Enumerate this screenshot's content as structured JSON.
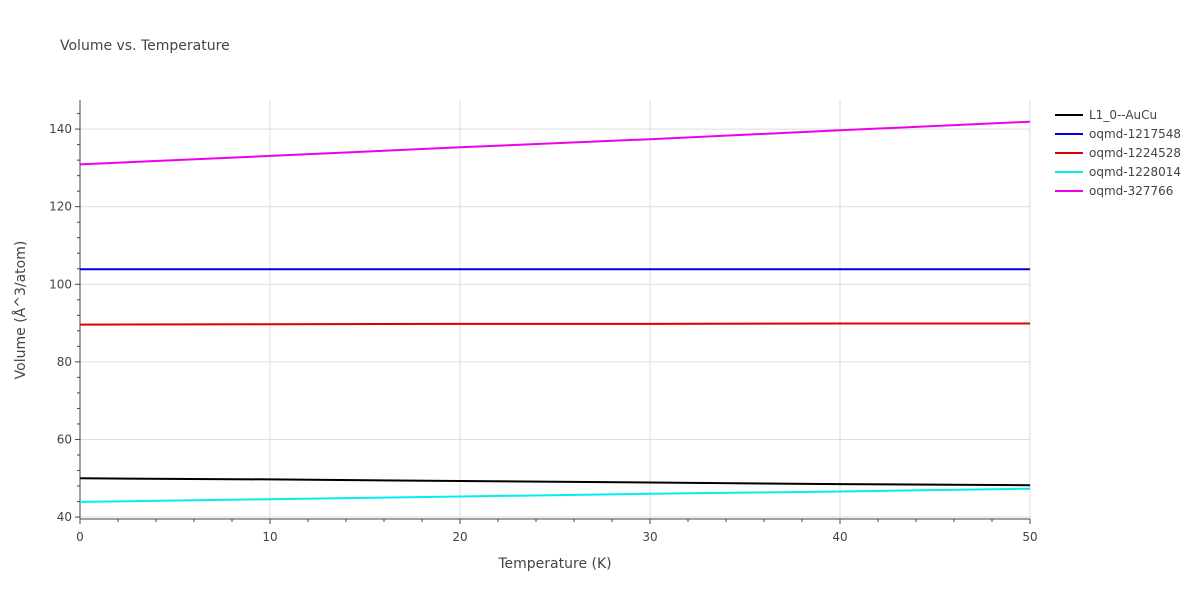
{
  "chart_data": {
    "type": "line",
    "title": "Volume vs. Temperature",
    "xlabel": "Temperature (K)",
    "ylabel": "Volume (Å^3/atom)",
    "xlim": [
      0,
      50
    ],
    "ylim": [
      39.5,
      147.5
    ],
    "x_ticks": [
      0,
      10,
      20,
      30,
      40,
      50
    ],
    "y_ticks": [
      40,
      60,
      80,
      100,
      120,
      140
    ],
    "grid": true,
    "legend_position": "top-right, outside plot",
    "series": [
      {
        "name": "L1_0--AuCu",
        "color": "#000000",
        "x": [
          0,
          10,
          20,
          30,
          40,
          50
        ],
        "y": [
          50.0,
          49.7,
          49.3,
          48.9,
          48.5,
          48.2
        ]
      },
      {
        "name": "oqmd-1217548",
        "color": "#0000dd",
        "x": [
          0,
          10,
          20,
          30,
          40,
          50
        ],
        "y": [
          103.9,
          103.9,
          103.9,
          103.9,
          103.9,
          103.9
        ]
      },
      {
        "name": "oqmd-1224528",
        "color": "#dd0000",
        "x": [
          0,
          10,
          20,
          30,
          40,
          50
        ],
        "y": [
          89.6,
          89.7,
          89.8,
          89.8,
          89.9,
          89.9
        ]
      },
      {
        "name": "oqmd-1228014",
        "color": "#00eeee",
        "x": [
          0,
          10,
          20,
          30,
          40,
          50
        ],
        "y": [
          43.9,
          44.6,
          45.3,
          46.0,
          46.6,
          47.3
        ]
      },
      {
        "name": "oqmd-327766",
        "color": "#ee00ee",
        "x": [
          0,
          10,
          20,
          30,
          40,
          50
        ],
        "y": [
          130.9,
          133.1,
          135.3,
          137.4,
          139.7,
          141.9
        ]
      }
    ]
  }
}
